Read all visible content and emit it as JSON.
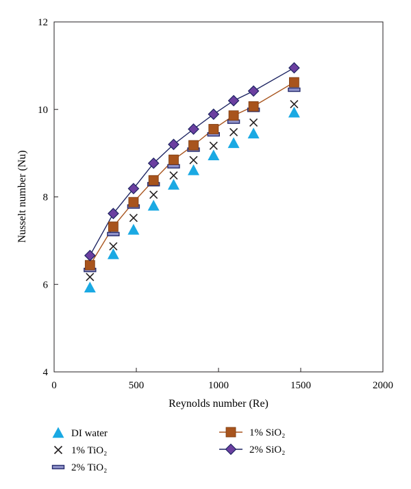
{
  "chart_data": {
    "type": "scatter",
    "xlabel": "Reynolds number (Re)",
    "ylabel": "Nusselt number (Nu)",
    "xlim": [
      0,
      2000
    ],
    "ylim": [
      4,
      12
    ],
    "xticks": [
      0,
      500,
      1000,
      1500,
      2000
    ],
    "yticks": [
      4,
      6,
      8,
      10,
      12
    ],
    "grid": false,
    "legend_position": "bottom",
    "series": [
      {
        "name": "DI water",
        "marker": "triangle-icon",
        "color": "#1aa9e3",
        "line": false,
        "x": [
          218,
          360,
          483,
          605,
          727,
          848,
          970,
          1092,
          1213,
          1460
        ],
        "y": [
          5.93,
          6.69,
          7.25,
          7.8,
          8.28,
          8.61,
          8.95,
          9.23,
          9.45,
          9.93
        ]
      },
      {
        "name": "1% TiO₂",
        "marker": "cross-icon",
        "color": "#231f20",
        "line": false,
        "x": [
          218,
          360,
          483,
          605,
          727,
          848,
          970,
          1092,
          1213,
          1460
        ],
        "y": [
          6.17,
          6.87,
          7.52,
          8.05,
          8.49,
          8.84,
          9.17,
          9.48,
          9.7,
          10.12
        ]
      },
      {
        "name": "2% TiO₂",
        "marker": "dash-icon",
        "color": "#262b6e",
        "line": false,
        "x": [
          218,
          360,
          483,
          605,
          727,
          848,
          970,
          1092,
          1213,
          1460
        ],
        "y": [
          6.33,
          7.15,
          7.78,
          8.29,
          8.7,
          9.08,
          9.43,
          9.72,
          9.99,
          10.45
        ]
      },
      {
        "name": "1% SiO₂",
        "marker": "square-icon",
        "color": "#a8541d",
        "line": true,
        "x": [
          218,
          360,
          483,
          605,
          727,
          848,
          970,
          1092,
          1213,
          1460
        ],
        "y": [
          6.44,
          7.32,
          7.88,
          8.38,
          8.85,
          9.18,
          9.55,
          9.86,
          10.07,
          10.62
        ]
      },
      {
        "name": "2% SiO₂",
        "marker": "diamond-icon",
        "color": "#6b3fa0",
        "line_color": "#1d2462",
        "line": true,
        "x": [
          218,
          360,
          483,
          605,
          727,
          848,
          970,
          1092,
          1213,
          1460
        ],
        "y": [
          6.66,
          7.62,
          8.19,
          8.77,
          9.2,
          9.55,
          9.89,
          10.2,
          10.42,
          10.95
        ]
      }
    ]
  }
}
